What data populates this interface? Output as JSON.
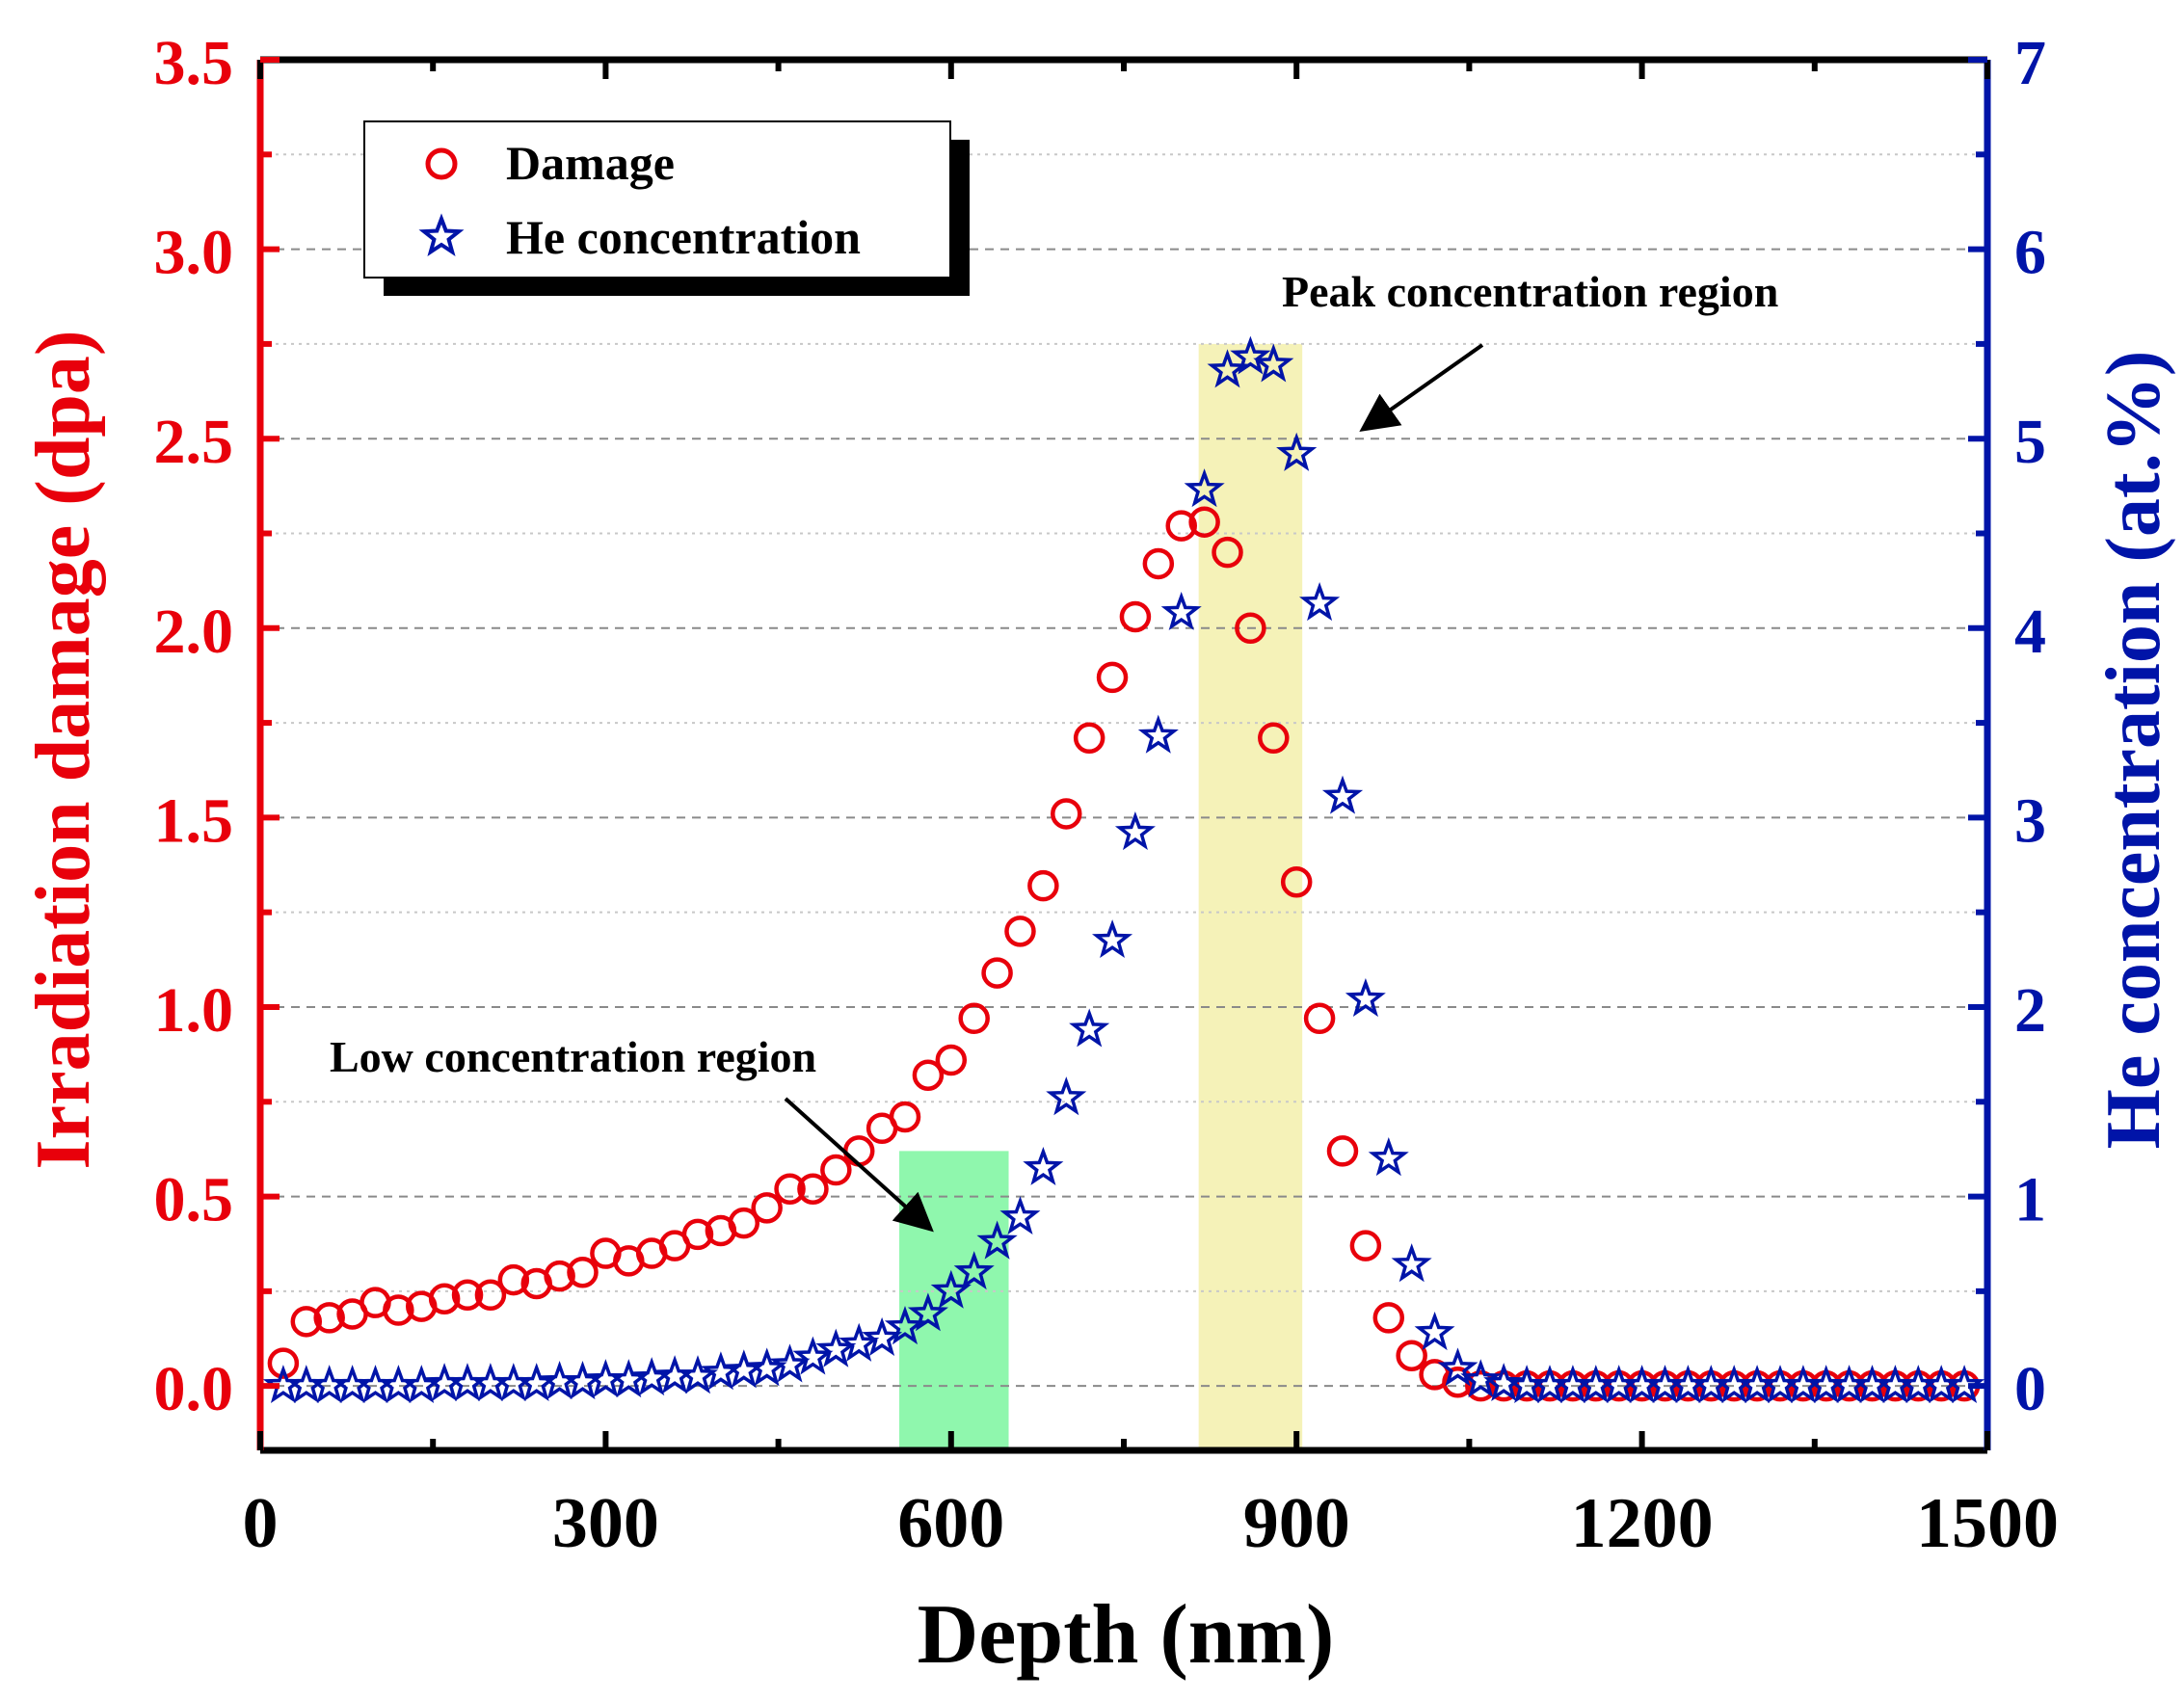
{
  "chart_data": {
    "type": "scatter",
    "title": "",
    "xlabel": "Depth (nm)",
    "ylabel": "Irradiation damage (dpa)",
    "y2label": "He concentration (at.%)",
    "xlim": [
      0,
      1500
    ],
    "ylim": [
      -0.17,
      3.5
    ],
    "y2lim": [
      -0.34,
      7
    ],
    "xticks": [
      "0",
      "300",
      "600",
      "900",
      "1200",
      "1500"
    ],
    "yticks": [
      "0.0",
      "0.5",
      "1.0",
      "1.5",
      "2.0",
      "2.5",
      "3.0",
      "3.5"
    ],
    "y2ticks": [
      "0",
      "1",
      "2",
      "3",
      "4",
      "5",
      "6",
      "7"
    ],
    "legend": {
      "position": "top-left",
      "entries": [
        "Damage",
        "He concentration"
      ]
    },
    "colors": {
      "damage": "#e8000b",
      "he": "#0014a8",
      "axis_left": "#e8000b",
      "axis_right": "#0014a8",
      "low_region": "#8ff7ad",
      "peak_region": "#f5f2b8"
    },
    "regions": [
      {
        "label": "Low concentration region",
        "x": [
          555,
          650
        ],
        "y_top": 0.62
      },
      {
        "label": "Peak concentration region",
        "x": [
          815,
          905
        ],
        "y_top": 2.75
      }
    ],
    "annotations": [
      {
        "text": "Low concentration region",
        "arrow_to": [
          580,
          0.42
        ]
      },
      {
        "text": "Peak concentration region",
        "arrow_to": [
          960,
          2.53
        ]
      }
    ],
    "series": [
      {
        "name": "Damage",
        "axis": "left",
        "marker": "circle",
        "x": [
          20,
          40,
          60,
          80,
          100,
          120,
          140,
          160,
          180,
          200,
          220,
          240,
          260,
          280,
          300,
          320,
          340,
          360,
          380,
          400,
          420,
          440,
          460,
          480,
          500,
          520,
          540,
          560,
          580,
          600,
          620,
          640,
          660,
          680,
          700,
          720,
          740,
          760,
          780,
          800,
          820,
          840,
          860,
          880,
          900,
          920,
          940,
          960,
          980,
          1000,
          1020,
          1040,
          1060,
          1080,
          1100,
          1120,
          1140,
          1160,
          1180,
          1200,
          1220,
          1240,
          1260,
          1280,
          1300,
          1320,
          1340,
          1360,
          1380,
          1400,
          1420,
          1440,
          1460,
          1480
        ],
        "values": [
          0.06,
          0.17,
          0.18,
          0.19,
          0.22,
          0.2,
          0.21,
          0.23,
          0.24,
          0.24,
          0.28,
          0.27,
          0.29,
          0.3,
          0.35,
          0.33,
          0.35,
          0.37,
          0.4,
          0.41,
          0.43,
          0.47,
          0.52,
          0.52,
          0.57,
          0.62,
          0.68,
          0.71,
          0.82,
          0.86,
          0.97,
          1.09,
          1.2,
          1.32,
          1.51,
          1.71,
          1.87,
          2.03,
          2.17,
          2.27,
          2.28,
          2.2,
          2.0,
          1.71,
          1.33,
          0.97,
          0.62,
          0.37,
          0.18,
          0.08,
          0.03,
          0.01,
          0.0,
          0.0,
          0.0,
          0.0,
          0.0,
          0.0,
          0.0,
          0.0,
          0.0,
          0.0,
          0.0,
          0.0,
          0.0,
          0.0,
          0.0,
          0.0,
          0.0,
          0.0,
          0.0,
          0.0,
          0.0,
          0.0
        ]
      },
      {
        "name": "He concentration",
        "axis": "right",
        "marker": "star",
        "x": [
          20,
          40,
          60,
          80,
          100,
          120,
          140,
          160,
          180,
          200,
          220,
          240,
          260,
          280,
          300,
          320,
          340,
          360,
          380,
          400,
          420,
          440,
          460,
          480,
          500,
          520,
          540,
          560,
          580,
          600,
          620,
          640,
          660,
          680,
          700,
          720,
          740,
          760,
          780,
          800,
          820,
          840,
          860,
          880,
          900,
          920,
          940,
          960,
          980,
          1000,
          1020,
          1040,
          1060,
          1080,
          1100,
          1120,
          1140,
          1160,
          1180,
          1200,
          1220,
          1240,
          1260,
          1280,
          1300,
          1320,
          1340,
          1360,
          1380,
          1400,
          1420,
          1440,
          1460,
          1480
        ],
        "values": [
          0.0,
          0.0,
          0.0,
          0.0,
          0.0,
          0.0,
          0.0,
          0.01,
          0.01,
          0.01,
          0.01,
          0.01,
          0.02,
          0.02,
          0.03,
          0.03,
          0.04,
          0.05,
          0.05,
          0.07,
          0.08,
          0.09,
          0.11,
          0.15,
          0.19,
          0.22,
          0.25,
          0.31,
          0.38,
          0.5,
          0.6,
          0.76,
          0.89,
          1.15,
          1.52,
          1.88,
          2.35,
          2.92,
          3.43,
          4.08,
          4.73,
          5.36,
          5.43,
          5.39,
          4.92,
          4.13,
          3.11,
          2.04,
          1.2,
          0.64,
          0.28,
          0.09,
          0.03,
          0.01,
          0.0,
          0.0,
          0.0,
          0.0,
          0.0,
          0.0,
          0.0,
          0.0,
          0.0,
          0.0,
          0.0,
          0.0,
          0.0,
          0.0,
          0.0,
          0.0,
          0.0,
          0.0,
          0.0,
          0.0
        ]
      }
    ]
  }
}
